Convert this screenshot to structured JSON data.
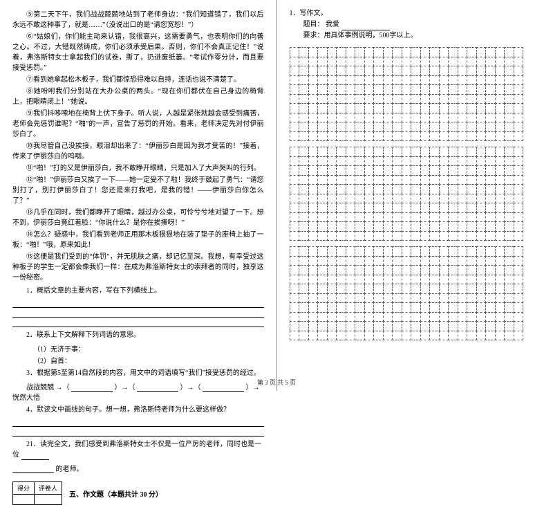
{
  "passage": {
    "paragraphs": [
      "⑤第二天下午，我们战战兢兢地站到了老师身边：“我们知道错了，我们以后永远不敢这种事了，就是……”（没说出口的是“请您宽恕！”）",
      "⑥“姑娘们，你们能主动来认错，我很高兴，这需要勇气，也表明你们的向善之心。不过，大错既然铸成，你们必须承受后果。否则，你们不会真正记住！”说着，弗洛斯特女士拿起我们的试卷，撕了，扔进废纸篓。“考试作零分计，而且要接受惩罚。”",
      "⑦看到她拿起松木板子，我们都惊恐得难以自持，连话也说不清楚了。",
      "⑧她吩咐我们分别站在大办公桌的两头。“现在你们都伏在自己身边的椅背上，把眼睛闭上！”她说。",
      "⑨我们抖哆嗦地在椅背上伏下身子。听人说，人越是紧张就越会感受到痛苦，老师会先惩罚谁呢？“啪”的一声，宣告了惩罚的开始。看来，老师决定先对付伊丽莎白了。",
      "⑩我尽管自己没挨接，眼泪却出来了：“伊丽莎白是因为我才受苦的！”接着，传来了伊丽莎白的呜咽。",
      "⑪“啪！”打的又是伊丽莎白，我不敢睁开眼睛，只是加入了大声哭叫的行列。",
      "⑫“啪！”伊丽莎白又挨了一下——她一定受不了啦！我终于鼓起了勇气：“请您别打了，别打伊丽莎白了！您还是来打我吧，是我的错！——伊丽莎白你怎么了？”",
      "⑬几乎在同时，我们都睁开了眼睛，越过办公桌，可怜兮兮地对望了一下。想不到，伊丽莎白竟红着脸：“你说什么？是你在挨揍呀！”",
      "⑭怎么？疑惑中，我们看到老师正用那木板狠狠地在装了垫子的座椅上抽了一板：“啪！”哦，原来如此！",
      "⑮这便是我们受到的“体罚”，并无肌肤之痛，却记忆至深。我想，有幸受过这种板子的学生一定都会像我们一样：在成为弗洛斯特女士的崇拜者的同时，独享这一份秘密。"
    ]
  },
  "questions": {
    "q1": "1．概括文章的主要内容，写在下列横线上。",
    "q2": "2．联系上下文解释下列词语的意思。",
    "q2a": "（1）无济于事：",
    "q2b": "（2）自首：",
    "q3": "3．根据第5至第14自然段的内容，用文中的词语填写“我们”接受惩罚的经过。",
    "q3chain_prefix": "战战兢兢 →（",
    "q3chain_mid1": "）→（",
    "q3chain_mid2": "）→（",
    "q3chain_suffix": "）→ 恍然大悟",
    "q4": "4．默读文中画线的句子。想一想，弗洛斯特老师为什么要这样做？",
    "q21_a": "21．读完全文，我们感受到弗洛斯特女士不仅是一位严厉的老师，同时也是一位",
    "q21_b": "的老师。"
  },
  "section5": {
    "score_left": "得分",
    "score_right": "评卷人",
    "title": "五、作文题（本题共计 30 分）"
  },
  "composition": {
    "line1": "1．写作文。",
    "line2_label": "题目：",
    "line2_value": "我爱",
    "line3": "要求：用具体事例说明，500字以上。"
  },
  "footer": "第 3 页 共 5 页"
}
